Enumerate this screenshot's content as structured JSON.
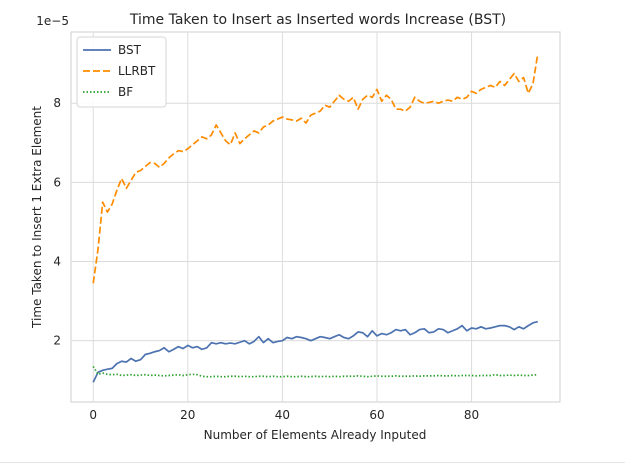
{
  "chart_data": {
    "type": "line",
    "title": "Time Taken to Insert as Inserted words Increase (BST)",
    "xlabel": "Number of Elements Already Inputed",
    "ylabel": "Time Taken to Insert 1 Extra Element",
    "y_scale_label": "1e−5",
    "xlim": [
      -4.7,
      98.7
    ],
    "ylim": [
      0.45,
      9.8
    ],
    "x_ticks": [
      0,
      20,
      40,
      60,
      80
    ],
    "x_tick_labels": [
      "0",
      "20",
      "40",
      "60",
      "80"
    ],
    "y_ticks": [
      2,
      4,
      6,
      8
    ],
    "y_tick_labels": [
      "2",
      "4",
      "6",
      "8"
    ],
    "grid": true,
    "legend": "top-left",
    "x": [
      0,
      1,
      2,
      3,
      4,
      5,
      6,
      7,
      8,
      9,
      10,
      11,
      12,
      13,
      14,
      15,
      16,
      17,
      18,
      19,
      20,
      21,
      22,
      23,
      24,
      25,
      26,
      27,
      28,
      29,
      30,
      31,
      32,
      33,
      34,
      35,
      36,
      37,
      38,
      39,
      40,
      41,
      42,
      43,
      44,
      45,
      46,
      47,
      48,
      49,
      50,
      51,
      52,
      53,
      54,
      55,
      56,
      57,
      58,
      59,
      60,
      61,
      62,
      63,
      64,
      65,
      66,
      67,
      68,
      69,
      70,
      71,
      72,
      73,
      74,
      75,
      76,
      77,
      78,
      79,
      80,
      81,
      82,
      83,
      84,
      85,
      86,
      87,
      88,
      89,
      90,
      91,
      92,
      93,
      94
    ],
    "series": [
      {
        "name": "BST",
        "color": "#4c72b0",
        "dash": "solid",
        "values": [
          0.95,
          1.2,
          1.25,
          1.28,
          1.3,
          1.42,
          1.48,
          1.46,
          1.55,
          1.48,
          1.52,
          1.65,
          1.68,
          1.72,
          1.75,
          1.82,
          1.72,
          1.78,
          1.85,
          1.8,
          1.88,
          1.82,
          1.85,
          1.78,
          1.82,
          1.95,
          1.92,
          1.95,
          1.92,
          1.94,
          1.92,
          1.96,
          2.0,
          1.92,
          1.98,
          2.1,
          1.95,
          2.05,
          1.95,
          1.98,
          2.0,
          2.08,
          2.05,
          2.1,
          2.08,
          2.05,
          2.0,
          2.05,
          2.1,
          2.08,
          2.05,
          2.1,
          2.15,
          2.08,
          2.05,
          2.12,
          2.22,
          2.2,
          2.1,
          2.25,
          2.12,
          2.18,
          2.15,
          2.2,
          2.28,
          2.25,
          2.28,
          2.15,
          2.2,
          2.28,
          2.3,
          2.2,
          2.22,
          2.3,
          2.28,
          2.2,
          2.25,
          2.3,
          2.38,
          2.25,
          2.32,
          2.3,
          2.35,
          2.3,
          2.32,
          2.35,
          2.38,
          2.38,
          2.35,
          2.28,
          2.35,
          2.3,
          2.38,
          2.45,
          2.48
        ]
      },
      {
        "name": "LLRBT",
        "color": "#ff8c00",
        "dash": "dashed",
        "values": [
          3.45,
          4.3,
          5.5,
          5.25,
          5.45,
          5.8,
          6.1,
          5.85,
          6.05,
          6.25,
          6.3,
          6.4,
          6.5,
          6.48,
          6.38,
          6.48,
          6.62,
          6.72,
          6.8,
          6.78,
          6.85,
          6.95,
          7.05,
          7.15,
          7.1,
          7.2,
          7.45,
          7.25,
          7.05,
          6.95,
          7.25,
          6.98,
          7.1,
          7.2,
          7.3,
          7.25,
          7.4,
          7.45,
          7.55,
          7.6,
          7.65,
          7.6,
          7.58,
          7.55,
          7.62,
          7.5,
          7.7,
          7.75,
          7.8,
          7.95,
          7.9,
          8.05,
          8.2,
          8.1,
          8.05,
          8.15,
          7.85,
          8.1,
          8.2,
          8.15,
          8.35,
          8.05,
          8.2,
          8.1,
          7.85,
          7.85,
          7.8,
          7.9,
          8.15,
          8.05,
          8.0,
          8.02,
          8.05,
          8.0,
          8.05,
          8.08,
          8.05,
          8.15,
          8.1,
          8.15,
          8.3,
          8.25,
          8.35,
          8.4,
          8.45,
          8.4,
          8.55,
          8.45,
          8.6,
          8.75,
          8.55,
          8.65,
          8.25,
          8.5,
          9.25
        ]
      },
      {
        "name": "BF",
        "color": "#2ca02c",
        "dash": "dotted",
        "values": [
          1.35,
          1.15,
          1.18,
          1.15,
          1.14,
          1.15,
          1.12,
          1.13,
          1.14,
          1.12,
          1.13,
          1.14,
          1.12,
          1.13,
          1.12,
          1.11,
          1.12,
          1.13,
          1.14,
          1.12,
          1.14,
          1.15,
          1.14,
          1.1,
          1.09,
          1.09,
          1.1,
          1.09,
          1.09,
          1.1,
          1.1,
          1.09,
          1.1,
          1.09,
          1.09,
          1.1,
          1.1,
          1.09,
          1.1,
          1.09,
          1.09,
          1.1,
          1.09,
          1.09,
          1.1,
          1.09,
          1.09,
          1.1,
          1.09,
          1.1,
          1.09,
          1.1,
          1.09,
          1.1,
          1.1,
          1.1,
          1.11,
          1.1,
          1.09,
          1.1,
          1.11,
          1.1,
          1.1,
          1.1,
          1.11,
          1.1,
          1.1,
          1.1,
          1.11,
          1.1,
          1.11,
          1.11,
          1.11,
          1.12,
          1.11,
          1.11,
          1.12,
          1.11,
          1.12,
          1.12,
          1.12,
          1.11,
          1.12,
          1.12,
          1.12,
          1.14,
          1.12,
          1.12,
          1.13,
          1.12,
          1.13,
          1.12,
          1.12,
          1.13,
          1.14
        ]
      }
    ]
  }
}
